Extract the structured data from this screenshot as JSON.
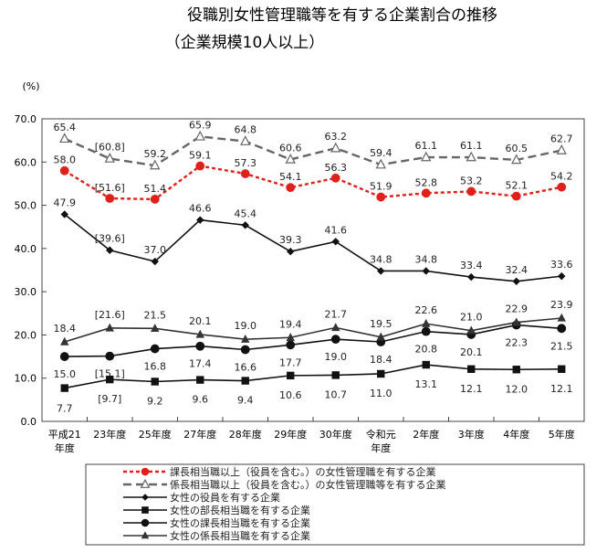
{
  "chart_data": {
    "type": "line",
    "title": "役職別女性管理職等を有する企業割合の推移",
    "subtitle": "（企業規模10人以上）",
    "unit": "(%)",
    "ylim": [
      0,
      70
    ],
    "yticks": [
      "0.0",
      "10.0",
      "20.0",
      "30.0",
      "40.0",
      "50.0",
      "60.0",
      "70.0"
    ],
    "categories": [
      "平成21年度",
      "23年度",
      "25年度",
      "27年度",
      "28年度",
      "29年度",
      "30年度",
      "令和元年度",
      "2年度",
      "3年度",
      "4年度",
      "5年度"
    ],
    "grid": false,
    "legend_position": "bottom",
    "series": [
      {
        "name": "課長相当職以上（役員を含む。）の女性管理職を有する企業",
        "values": [
          58.0,
          51.6,
          51.4,
          59.1,
          57.3,
          54.1,
          56.3,
          51.9,
          52.8,
          53.2,
          52.1,
          54.2
        ],
        "labels": [
          "58.0",
          "[51.6]",
          "51.4",
          "59.1",
          "57.3",
          "54.1",
          "56.3",
          "51.9",
          "52.8",
          "53.2",
          "52.1",
          "54.2"
        ],
        "color": "#e0201b",
        "dash": "dotted",
        "marker": "circle"
      },
      {
        "name": "係長相当職以上（役員を含む。）の女性管理職等を有する企業",
        "values": [
          65.4,
          60.8,
          59.2,
          65.9,
          64.8,
          60.6,
          63.2,
          59.4,
          61.1,
          61.1,
          60.5,
          62.7
        ],
        "labels": [
          "65.4",
          "[60.8]",
          "59.2",
          "65.9",
          "64.8",
          "60.6",
          "63.2",
          "59.4",
          "61.1",
          "61.1",
          "60.5",
          "62.7"
        ],
        "color": "#666666",
        "dash": "dashed",
        "marker": "triangle-open"
      },
      {
        "name": "女性の役員を有する企業",
        "values": [
          47.9,
          39.6,
          37.0,
          46.6,
          45.4,
          39.3,
          41.6,
          34.8,
          34.8,
          33.4,
          32.4,
          33.6
        ],
        "labels": [
          "47.9",
          "[39.6]",
          "37.0",
          "46.6",
          "45.4",
          "39.3",
          "41.6",
          "34.8",
          "34.8",
          "33.4",
          "32.4",
          "33.6"
        ],
        "color": "#111111",
        "dash": "solid",
        "marker": "diamond"
      },
      {
        "name": "女性の部長相当職を有する企業",
        "values": [
          7.7,
          9.7,
          9.2,
          9.6,
          9.4,
          10.6,
          10.7,
          11.0,
          13.1,
          12.1,
          12.0,
          12.1
        ],
        "labels": [
          "7.7",
          "[9.7]",
          "9.2",
          "9.6",
          "9.4",
          "10.6",
          "10.7",
          "11.0",
          "13.1",
          "12.1",
          "12.0",
          "12.1"
        ],
        "color": "#111111",
        "dash": "solid",
        "marker": "square"
      },
      {
        "name": "女性の課長相当職を有する企業",
        "values": [
          15.0,
          15.1,
          16.8,
          17.4,
          16.6,
          17.7,
          19.0,
          18.4,
          20.8,
          20.1,
          22.3,
          21.5
        ],
        "labels": [
          "15.0",
          "[15.1]",
          "16.8",
          "17.4",
          "16.6",
          "17.7",
          "19.0",
          "18.4",
          "20.8",
          "20.1",
          "22.3",
          "21.5"
        ],
        "color": "#111111",
        "dash": "solid",
        "marker": "circle"
      },
      {
        "name": "女性の係長相当職を有する企業",
        "values": [
          18.4,
          21.6,
          21.5,
          20.1,
          19.0,
          19.4,
          21.7,
          19.5,
          22.6,
          21.0,
          22.9,
          23.9
        ],
        "labels": [
          "18.4",
          "[21.6]",
          "21.5",
          "20.1",
          "19.0",
          "19.4",
          "21.7",
          "19.5",
          "22.6",
          "21.0",
          "22.9",
          "23.9"
        ],
        "color": "#333333",
        "dash": "solid",
        "marker": "triangle"
      }
    ]
  }
}
